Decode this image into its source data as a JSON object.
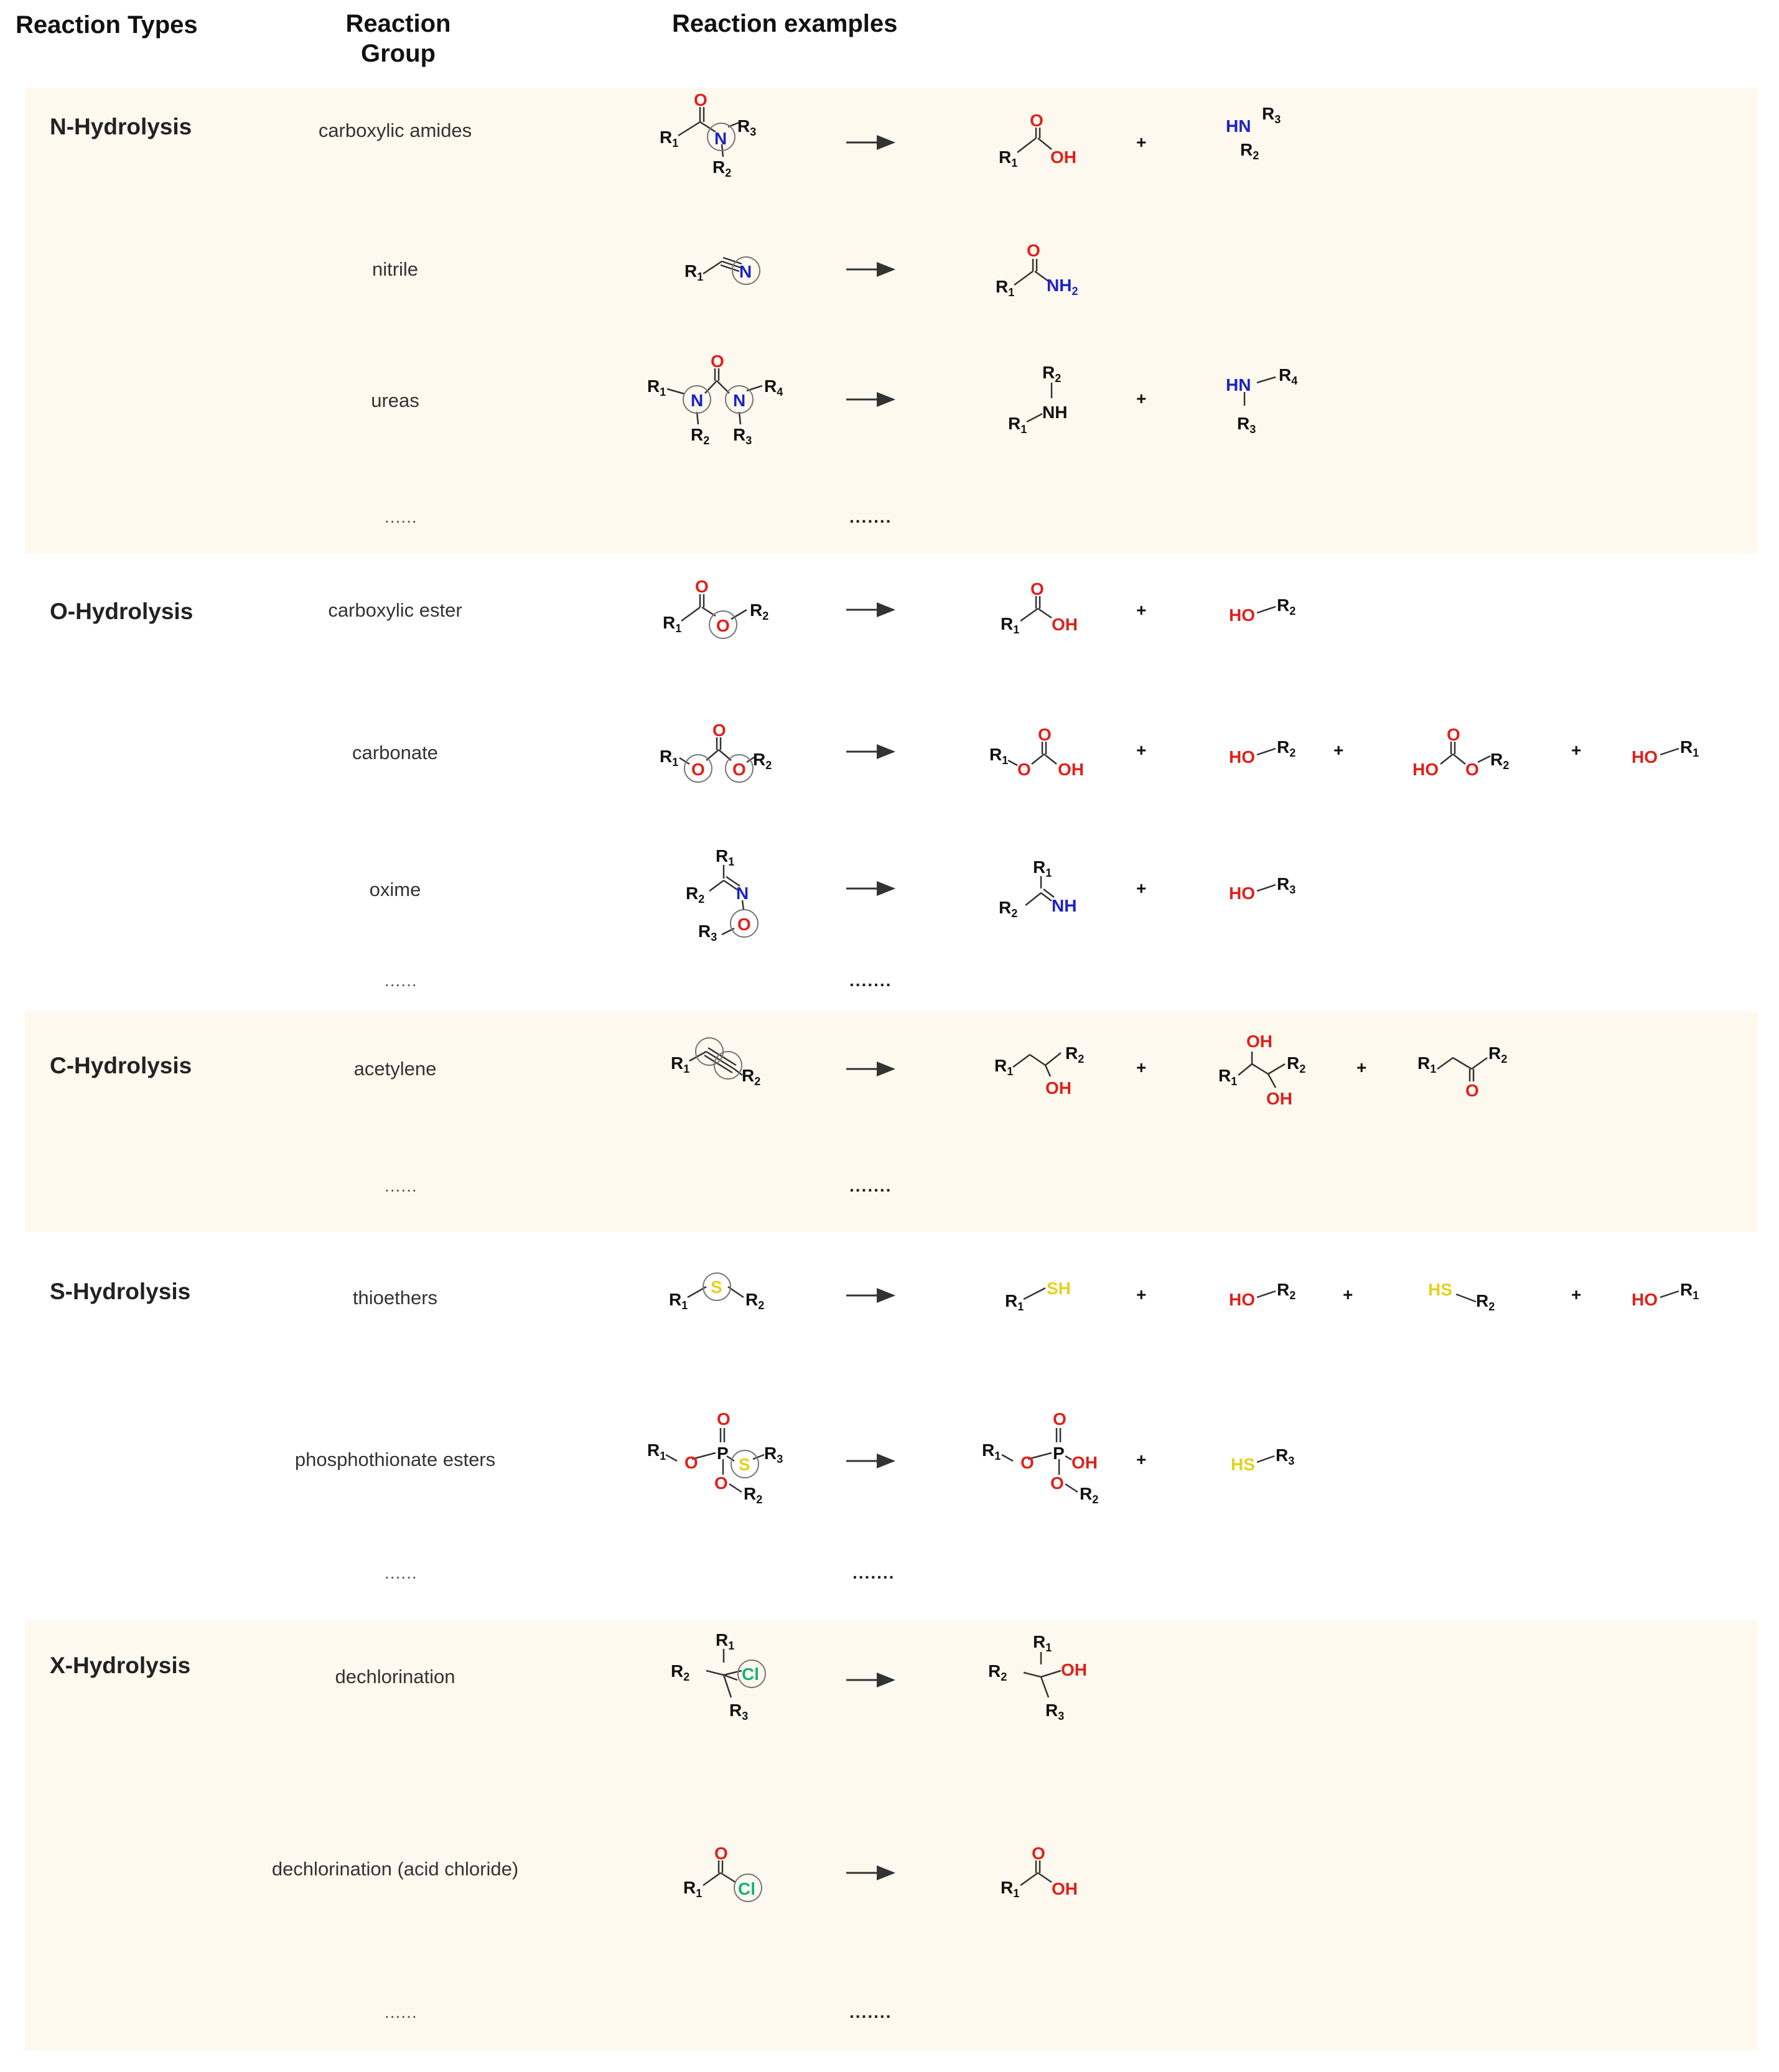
{
  "headers": {
    "reaction_types": "Reaction Types",
    "reaction_group_line1": "Reaction",
    "reaction_group_line2": "Group",
    "reaction_examples": "Reaction examples"
  },
  "sections": [
    {
      "type": "N-Hydrolysis",
      "groups": [
        "carboxylic amides",
        "nitrile",
        "ureas",
        "......"
      ],
      "examples_ellipsis": "......."
    },
    {
      "type": "O-Hydrolysis",
      "groups": [
        "carboxylic ester",
        "carbonate",
        "oxime",
        "......"
      ],
      "examples_ellipsis": "......."
    },
    {
      "type": "C-Hydrolysis",
      "groups": [
        "acetylene",
        "......"
      ],
      "examples_ellipsis": "......."
    },
    {
      "type": "S-Hydrolysis",
      "groups": [
        "thioethers",
        "phosphothionate esters",
        "......"
      ],
      "examples_ellipsis": "......."
    },
    {
      "type": "X-Hydrolysis",
      "groups": [
        "dechlorination",
        "dechlorination (acid chloride)",
        "......"
      ],
      "examples_ellipsis": "......."
    }
  ],
  "colors": {
    "band": "#fdf9ee",
    "oxygen": "#e0201b",
    "nitrogen": "#1b22c8",
    "sulfur": "#e3d21c",
    "chlorine": "#16b07a",
    "carbon_label": "#111111"
  }
}
